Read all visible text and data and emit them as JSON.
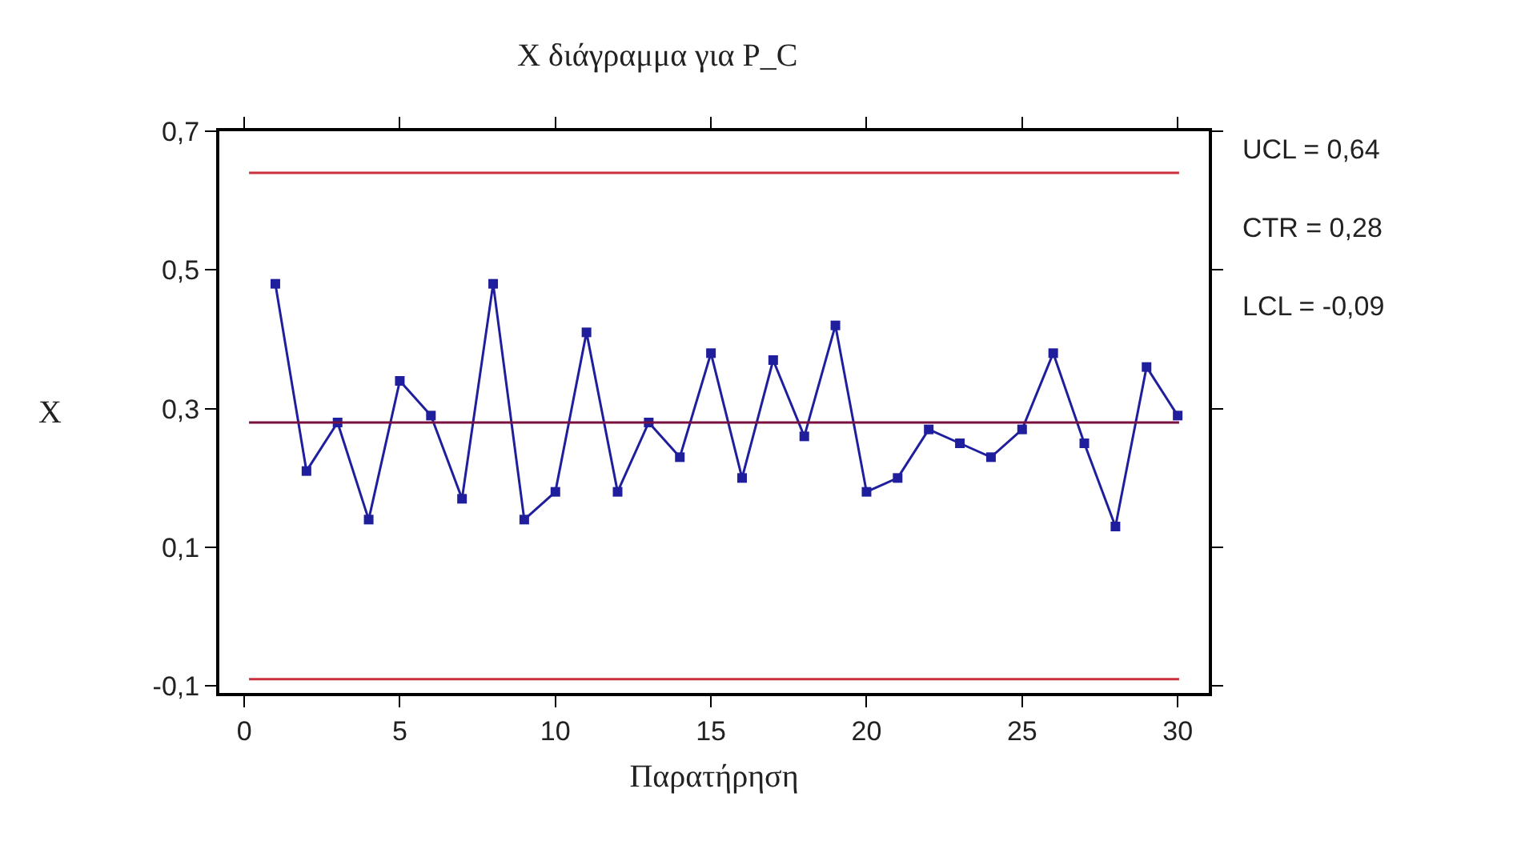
{
  "chart_data": {
    "type": "line",
    "title": "X διάγραμμα για P_C",
    "xlabel": "Παρατήρηση",
    "ylabel": "X",
    "x": [
      1,
      2,
      3,
      4,
      5,
      6,
      7,
      8,
      9,
      10,
      11,
      12,
      13,
      14,
      15,
      16,
      17,
      18,
      19,
      20,
      21,
      22,
      23,
      24,
      25,
      26,
      27,
      28,
      29,
      30
    ],
    "series": [
      {
        "color": "#1f1f9e",
        "values": [
          0.48,
          0.21,
          0.28,
          0.14,
          0.34,
          0.29,
          0.17,
          0.48,
          0.14,
          0.18,
          0.41,
          0.18,
          0.28,
          0.23,
          0.38,
          0.2,
          0.37,
          0.26,
          0.42,
          0.18,
          0.2,
          0.27,
          0.25,
          0.23,
          0.27,
          0.38,
          0.25,
          0.13,
          0.36,
          0.29
        ]
      }
    ],
    "xlim": [
      -0.8,
      31
    ],
    "xticks": [
      0,
      5,
      10,
      15,
      20,
      25,
      30
    ],
    "ylim": [
      -0.11,
      0.7
    ],
    "yticks": [
      {
        "value": 0.7,
        "label": "0,7"
      },
      {
        "value": 0.5,
        "label": "0,5"
      },
      {
        "value": 0.3,
        "label": "0,3"
      },
      {
        "value": 0.1,
        "label": "0,1"
      },
      {
        "value": -0.1,
        "label": "-0,1"
      }
    ],
    "ref_lines": [
      {
        "axis": "y",
        "value": 0.64,
        "color": "#c8313d"
      },
      {
        "axis": "y",
        "value": 0.28,
        "color": "#7a1040"
      },
      {
        "axis": "y",
        "value": -0.09,
        "color": "#c8313d"
      }
    ],
    "annotations": [
      "UCL = 0,64",
      "CTR = 0,28",
      "LCL = -0,09"
    ],
    "marker": "square",
    "line_style": "solid",
    "grid": false
  }
}
